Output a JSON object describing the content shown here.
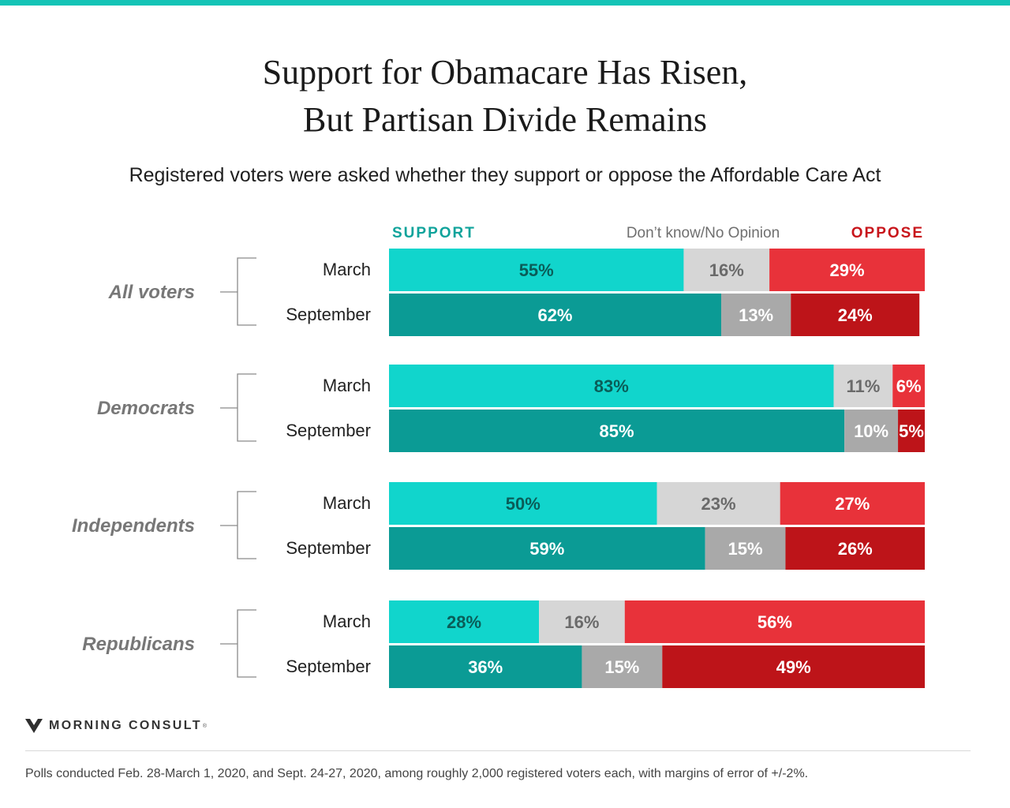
{
  "colors": {
    "accent_bar": "#14c4b6",
    "support_march": "#11d5cc",
    "support_september": "#0b9b95",
    "dk_march": "#d6d6d6",
    "dk_september": "#a9a9a9",
    "oppose_march": "#e8323a",
    "oppose_september": "#bd1419",
    "support_legend": "#0fa39b",
    "dk_legend": "#6f6f6f",
    "oppose_legend": "#c8151b"
  },
  "title_lines": [
    "Support for Obamacare Has Risen,",
    "But Partisan Divide Remains"
  ],
  "subtitle": "Registered voters were asked whether they support or oppose the Affordable Care Act",
  "chart_data": {
    "type": "bar",
    "orientation": "horizontal",
    "stacked": true,
    "normalized": true,
    "legend": {
      "support": "SUPPORT",
      "dk": "Don’t know/No Opinion",
      "oppose": "OPPOSE",
      "placement": "top"
    },
    "groups": [
      {
        "name": "All voters",
        "rows": [
          {
            "label": "March",
            "support": 55,
            "dk": 16,
            "oppose": 29
          },
          {
            "label": "September",
            "support": 62,
            "dk": 13,
            "oppose": 24
          }
        ]
      },
      {
        "name": "Democrats",
        "rows": [
          {
            "label": "March",
            "support": 83,
            "dk": 11,
            "oppose": 6
          },
          {
            "label": "September",
            "support": 85,
            "dk": 10,
            "oppose": 5
          }
        ]
      },
      {
        "name": "Independents",
        "rows": [
          {
            "label": "March",
            "support": 50,
            "dk": 23,
            "oppose": 27
          },
          {
            "label": "September",
            "support": 59,
            "dk": 15,
            "oppose": 26
          }
        ]
      },
      {
        "name": "Republicans",
        "rows": [
          {
            "label": "March",
            "support": 28,
            "dk": 16,
            "oppose": 56
          },
          {
            "label": "September",
            "support": 36,
            "dk": 15,
            "oppose": 49
          }
        ]
      }
    ],
    "xlim": [
      0,
      100
    ],
    "grid": false
  },
  "footer": {
    "brand": "MORNING CONSULT",
    "note": "Polls conducted Feb. 28-March 1, 2020, and Sept. 24-27, 2020, among roughly 2,000 registered voters each, with margins of error of +/-2%."
  }
}
